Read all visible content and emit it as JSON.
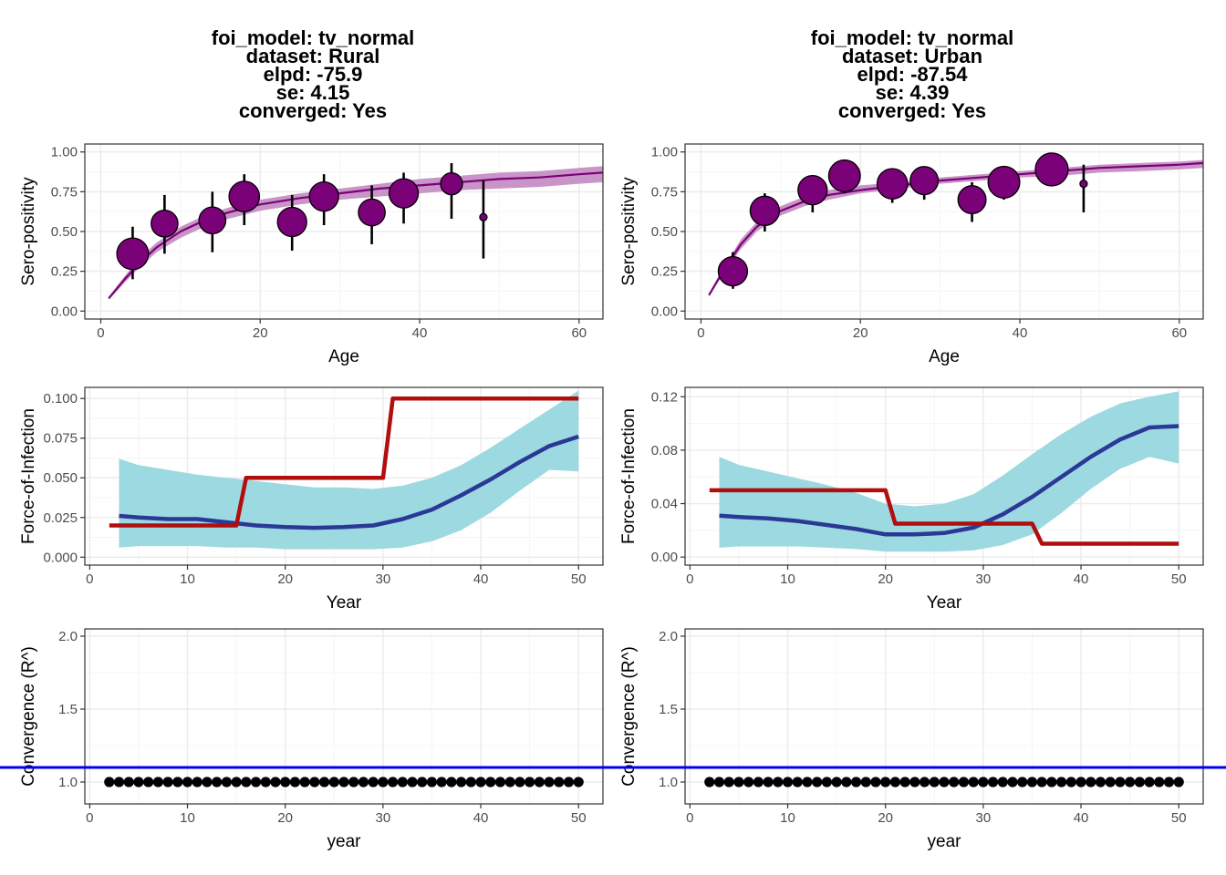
{
  "columns": [
    {
      "title_lines": [
        "foi_model: tv_normal",
        "dataset: Rural",
        "elpd: -75.9",
        "se: 4.15",
        "converged: Yes"
      ]
    },
    {
      "title_lines": [
        "foi_model: tv_normal",
        "dataset: Urban",
        "elpd: -87.54",
        "se: 4.39",
        "converged: Yes"
      ]
    }
  ],
  "colors": {
    "purple": "#7a0177",
    "purple_ribbon": "#c994c7",
    "cyan_ribbon": "#9dd9e0",
    "navy": "#2b3896",
    "red": "#b10e0e",
    "blue_line": "#0000ee",
    "grid_major": "#ebebeb",
    "grid_minor": "#f5f5f5",
    "panel_border": "#333333"
  },
  "chart_data": [
    {
      "panel": "rural-seroprevalence",
      "type": "scatter",
      "xlabel": "Age",
      "ylabel": "Sero-positivity",
      "xlim": [
        -2,
        63
      ],
      "ylim": [
        -0.05,
        1.05
      ],
      "xticks": [
        0,
        20,
        40,
        60
      ],
      "yticks": [
        0.0,
        0.25,
        0.5,
        0.75,
        1.0
      ],
      "ytick_labels": [
        "0.00",
        "0.25",
        "0.50",
        "0.75",
        "1.00"
      ],
      "points": [
        {
          "x": 4,
          "y": 0.36,
          "ymin": 0.2,
          "ymax": 0.53,
          "size": 26
        },
        {
          "x": 8,
          "y": 0.55,
          "ymin": 0.36,
          "ymax": 0.73,
          "size": 22
        },
        {
          "x": 14,
          "y": 0.57,
          "ymin": 0.37,
          "ymax": 0.75,
          "size": 22
        },
        {
          "x": 18,
          "y": 0.72,
          "ymin": 0.54,
          "ymax": 0.86,
          "size": 25
        },
        {
          "x": 24,
          "y": 0.56,
          "ymin": 0.38,
          "ymax": 0.73,
          "size": 24
        },
        {
          "x": 28,
          "y": 0.72,
          "ymin": 0.54,
          "ymax": 0.86,
          "size": 24
        },
        {
          "x": 34,
          "y": 0.62,
          "ymin": 0.42,
          "ymax": 0.79,
          "size": 22
        },
        {
          "x": 38,
          "y": 0.74,
          "ymin": 0.55,
          "ymax": 0.87,
          "size": 24
        },
        {
          "x": 44,
          "y": 0.8,
          "ymin": 0.58,
          "ymax": 0.93,
          "size": 18
        },
        {
          "x": 48,
          "y": 0.59,
          "ymin": 0.33,
          "ymax": 0.82,
          "size": 6
        }
      ],
      "fit_x": [
        1,
        3,
        5,
        7,
        10,
        13,
        16,
        20,
        25,
        30,
        35,
        40,
        45,
        50,
        55,
        60,
        63
      ],
      "fit_y": [
        0.08,
        0.2,
        0.31,
        0.4,
        0.5,
        0.57,
        0.62,
        0.67,
        0.71,
        0.74,
        0.77,
        0.79,
        0.81,
        0.83,
        0.84,
        0.86,
        0.87
      ],
      "fit_lo": [
        0.07,
        0.18,
        0.28,
        0.37,
        0.46,
        0.53,
        0.58,
        0.63,
        0.67,
        0.7,
        0.72,
        0.74,
        0.76,
        0.77,
        0.78,
        0.8,
        0.81
      ],
      "fit_hi": [
        0.09,
        0.22,
        0.34,
        0.43,
        0.53,
        0.6,
        0.65,
        0.7,
        0.74,
        0.77,
        0.8,
        0.83,
        0.85,
        0.87,
        0.88,
        0.9,
        0.91
      ]
    },
    {
      "panel": "urban-seroprevalence",
      "type": "scatter",
      "xlabel": "Age",
      "ylabel": "Sero-positivity",
      "xlim": [
        -2,
        63
      ],
      "ylim": [
        -0.05,
        1.05
      ],
      "xticks": [
        0,
        20,
        40,
        60
      ],
      "yticks": [
        0.0,
        0.25,
        0.5,
        0.75,
        1.0
      ],
      "ytick_labels": [
        "0.00",
        "0.25",
        "0.50",
        "0.75",
        "1.00"
      ],
      "points": [
        {
          "x": 4,
          "y": 0.25,
          "ymin": 0.14,
          "ymax": 0.37,
          "size": 24
        },
        {
          "x": 8,
          "y": 0.63,
          "ymin": 0.5,
          "ymax": 0.74,
          "size": 24
        },
        {
          "x": 14,
          "y": 0.76,
          "ymin": 0.62,
          "ymax": 0.85,
          "size": 24
        },
        {
          "x": 18,
          "y": 0.85,
          "ymin": 0.74,
          "ymax": 0.92,
          "size": 26
        },
        {
          "x": 24,
          "y": 0.8,
          "ymin": 0.68,
          "ymax": 0.88,
          "size": 25
        },
        {
          "x": 28,
          "y": 0.82,
          "ymin": 0.7,
          "ymax": 0.89,
          "size": 23
        },
        {
          "x": 34,
          "y": 0.7,
          "ymin": 0.56,
          "ymax": 0.81,
          "size": 23
        },
        {
          "x": 38,
          "y": 0.81,
          "ymin": 0.7,
          "ymax": 0.89,
          "size": 26
        },
        {
          "x": 44,
          "y": 0.89,
          "ymin": 0.8,
          "ymax": 0.94,
          "size": 27
        },
        {
          "x": 48,
          "y": 0.8,
          "ymin": 0.62,
          "ymax": 0.92,
          "size": 6
        }
      ],
      "fit_x": [
        1,
        3,
        5,
        7,
        10,
        13,
        16,
        20,
        25,
        30,
        35,
        40,
        45,
        50,
        55,
        60,
        63
      ],
      "fit_y": [
        0.1,
        0.27,
        0.42,
        0.53,
        0.63,
        0.69,
        0.73,
        0.76,
        0.79,
        0.82,
        0.84,
        0.86,
        0.88,
        0.9,
        0.91,
        0.92,
        0.93
      ],
      "fit_lo": [
        0.09,
        0.25,
        0.39,
        0.5,
        0.6,
        0.66,
        0.7,
        0.74,
        0.77,
        0.8,
        0.82,
        0.84,
        0.85,
        0.87,
        0.88,
        0.89,
        0.9
      ],
      "fit_hi": [
        0.11,
        0.29,
        0.45,
        0.56,
        0.66,
        0.72,
        0.76,
        0.79,
        0.81,
        0.84,
        0.86,
        0.88,
        0.9,
        0.92,
        0.93,
        0.94,
        0.95
      ]
    },
    {
      "panel": "rural-foi",
      "type": "line",
      "xlabel": "Year",
      "ylabel": "Force-of-Infection",
      "xlim": [
        -0.5,
        52.5
      ],
      "ylim": [
        -0.005,
        0.107
      ],
      "xticks": [
        0,
        10,
        20,
        30,
        40,
        50
      ],
      "yticks": [
        0.0,
        0.025,
        0.05,
        0.075,
        0.1
      ],
      "ytick_labels": [
        "0.000",
        "0.025",
        "0.050",
        "0.075",
        "0.100"
      ],
      "series": [
        {
          "x": [
            2,
            15,
            16,
            30,
            31,
            50
          ],
          "values": [
            0.02,
            0.02,
            0.05,
            0.05,
            0.1,
            0.1
          ]
        },
        {
          "x": [
            3,
            5,
            8,
            11,
            14,
            17,
            20,
            23,
            26,
            29,
            32,
            35,
            38,
            41,
            44,
            47,
            50
          ],
          "values": [
            0.026,
            0.025,
            0.024,
            0.024,
            0.022,
            0.02,
            0.019,
            0.0185,
            0.019,
            0.02,
            0.024,
            0.03,
            0.039,
            0.049,
            0.06,
            0.07,
            0.076
          ]
        }
      ],
      "ribbon": {
        "x": [
          3,
          5,
          8,
          11,
          14,
          17,
          20,
          23,
          26,
          29,
          32,
          35,
          38,
          41,
          44,
          47,
          50
        ],
        "lo": [
          0.006,
          0.007,
          0.007,
          0.007,
          0.006,
          0.006,
          0.005,
          0.005,
          0.005,
          0.005,
          0.006,
          0.01,
          0.017,
          0.028,
          0.042,
          0.055,
          0.054
        ],
        "hi": [
          0.062,
          0.058,
          0.055,
          0.052,
          0.05,
          0.048,
          0.046,
          0.044,
          0.044,
          0.043,
          0.045,
          0.05,
          0.058,
          0.069,
          0.081,
          0.093,
          0.105
        ]
      }
    },
    {
      "panel": "urban-foi",
      "type": "line",
      "xlabel": "Year",
      "ylabel": "Force-of-Infection",
      "xlim": [
        -0.5,
        52.5
      ],
      "ylim": [
        -0.006,
        0.127
      ],
      "xticks": [
        0,
        10,
        20,
        30,
        40,
        50
      ],
      "yticks": [
        0.0,
        0.04,
        0.08,
        0.12
      ],
      "ytick_labels": [
        "0.00",
        "0.04",
        "0.08",
        "0.12"
      ],
      "series": [
        {
          "x": [
            2,
            20,
            21,
            35,
            36,
            50
          ],
          "values": [
            0.05,
            0.05,
            0.025,
            0.025,
            0.01,
            0.01
          ]
        },
        {
          "x": [
            3,
            5,
            8,
            11,
            14,
            17,
            20,
            23,
            26,
            29,
            32,
            35,
            38,
            41,
            44,
            47,
            50
          ],
          "values": [
            0.031,
            0.03,
            0.029,
            0.027,
            0.024,
            0.021,
            0.017,
            0.017,
            0.018,
            0.022,
            0.032,
            0.045,
            0.06,
            0.075,
            0.088,
            0.097,
            0.098
          ]
        }
      ],
      "ribbon": {
        "x": [
          3,
          5,
          8,
          11,
          14,
          17,
          20,
          23,
          26,
          29,
          32,
          35,
          38,
          41,
          44,
          47,
          50
        ],
        "lo": [
          0.007,
          0.008,
          0.008,
          0.008,
          0.007,
          0.006,
          0.004,
          0.004,
          0.004,
          0.005,
          0.009,
          0.017,
          0.033,
          0.051,
          0.066,
          0.075,
          0.07
        ],
        "hi": [
          0.075,
          0.069,
          0.064,
          0.059,
          0.054,
          0.048,
          0.04,
          0.038,
          0.04,
          0.047,
          0.061,
          0.077,
          0.092,
          0.105,
          0.115,
          0.12,
          0.124
        ]
      }
    },
    {
      "panel": "rural-convergence",
      "type": "scatter",
      "xlabel": "year",
      "ylabel": "Convergence (R^)",
      "xlim": [
        -0.5,
        52.5
      ],
      "ylim": [
        0.85,
        2.05
      ],
      "xticks": [
        0,
        10,
        20,
        30,
        40,
        50
      ],
      "yticks": [
        1.0,
        1.5,
        2.0
      ],
      "ytick_labels": [
        "1.0",
        "1.5",
        "2.0"
      ],
      "hline": 1.1,
      "x": [
        2,
        3,
        4,
        5,
        6,
        7,
        8,
        9,
        10,
        11,
        12,
        13,
        14,
        15,
        16,
        17,
        18,
        19,
        20,
        21,
        22,
        23,
        24,
        25,
        26,
        27,
        28,
        29,
        30,
        31,
        32,
        33,
        34,
        35,
        36,
        37,
        38,
        39,
        40,
        41,
        42,
        43,
        44,
        45,
        46,
        47,
        48,
        49,
        50
      ],
      "values": [
        1.0,
        1.0,
        1.0,
        1.0,
        1.0,
        1.0,
        1.0,
        1.0,
        1.0,
        1.0,
        1.0,
        1.0,
        1.0,
        1.0,
        1.0,
        1.0,
        1.0,
        1.0,
        1.0,
        1.0,
        1.0,
        1.0,
        1.0,
        1.0,
        1.0,
        1.0,
        1.0,
        1.0,
        1.0,
        1.0,
        1.0,
        1.0,
        1.0,
        1.0,
        1.0,
        1.0,
        1.0,
        1.0,
        1.0,
        1.0,
        1.0,
        1.0,
        1.0,
        1.0,
        1.0,
        1.0,
        1.0,
        1.0,
        1.0
      ]
    },
    {
      "panel": "urban-convergence",
      "type": "scatter",
      "xlabel": "year",
      "ylabel": "Convergence (R^)",
      "xlim": [
        -0.5,
        52.5
      ],
      "ylim": [
        0.85,
        2.05
      ],
      "xticks": [
        0,
        10,
        20,
        30,
        40,
        50
      ],
      "yticks": [
        1.0,
        1.5,
        2.0
      ],
      "ytick_labels": [
        "1.0",
        "1.5",
        "2.0"
      ],
      "hline": 1.1,
      "x": [
        2,
        3,
        4,
        5,
        6,
        7,
        8,
        9,
        10,
        11,
        12,
        13,
        14,
        15,
        16,
        17,
        18,
        19,
        20,
        21,
        22,
        23,
        24,
        25,
        26,
        27,
        28,
        29,
        30,
        31,
        32,
        33,
        34,
        35,
        36,
        37,
        38,
        39,
        40,
        41,
        42,
        43,
        44,
        45,
        46,
        47,
        48,
        49,
        50
      ],
      "values": [
        1.0,
        1.0,
        1.0,
        1.0,
        1.0,
        1.0,
        1.0,
        1.0,
        1.0,
        1.0,
        1.0,
        1.0,
        1.0,
        1.0,
        1.0,
        1.0,
        1.0,
        1.0,
        1.0,
        1.0,
        1.0,
        1.0,
        1.0,
        1.0,
        1.0,
        1.0,
        1.0,
        1.0,
        1.0,
        1.0,
        1.0,
        1.0,
        1.0,
        1.0,
        1.0,
        1.0,
        1.0,
        1.0,
        1.0,
        1.0,
        1.0,
        1.0,
        1.0,
        1.0,
        1.0,
        1.0,
        1.0,
        1.0,
        1.0
      ]
    }
  ]
}
